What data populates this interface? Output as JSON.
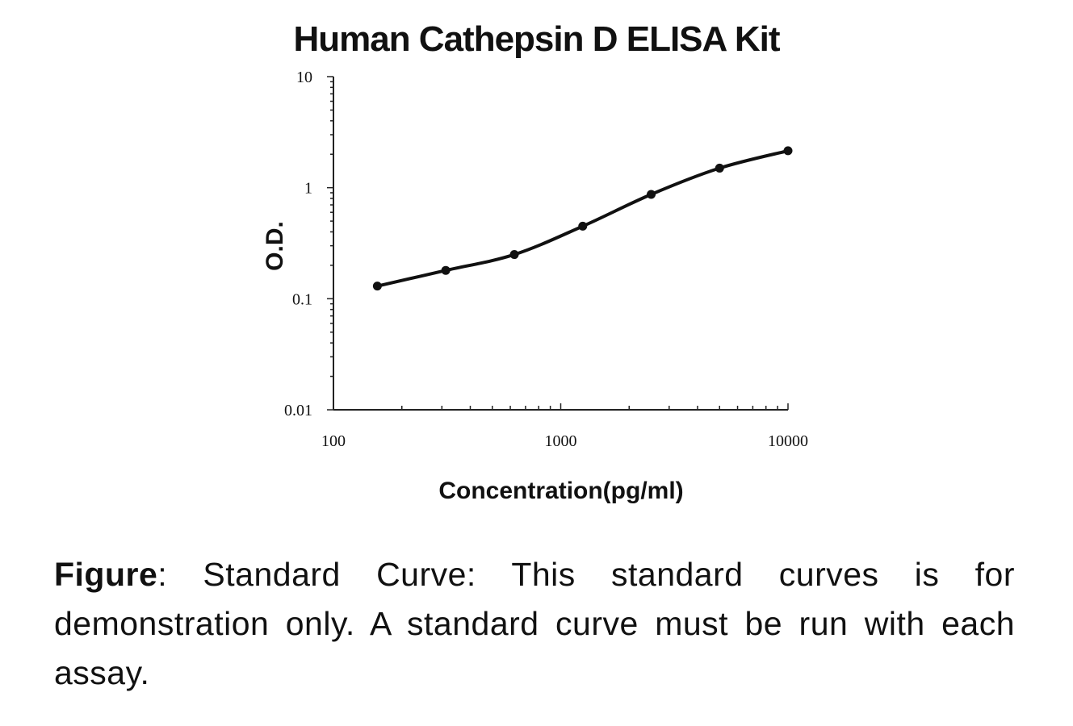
{
  "chart_data": {
    "type": "line",
    "title": "Human Cathepsin D ELISA Kit",
    "xlabel": "Concentration(pg/ml)",
    "ylabel": "O.D.",
    "xscale": "log",
    "yscale": "log",
    "xlim": [
      100,
      10000
    ],
    "ylim": [
      0.01,
      10
    ],
    "x_ticks": [
      "100",
      "1000",
      "10000"
    ],
    "y_ticks": [
      "10",
      "1",
      "0.1",
      "0.01"
    ],
    "grid": false,
    "series": [
      {
        "x": [
          156,
          312,
          625,
          1250,
          2500,
          5000,
          10000
        ],
        "values": [
          0.13,
          0.18,
          0.25,
          0.45,
          0.87,
          1.5,
          2.15
        ]
      }
    ]
  },
  "caption": {
    "bold": "Figure",
    "text": ": Standard Curve: This standard curves is for demonstration only. A standard curve must be run with each assay."
  }
}
